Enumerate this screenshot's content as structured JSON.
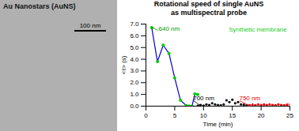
{
  "chart_data": [
    {
      "type": "image",
      "title": "Au Nanostars (AuNS)",
      "color": "#b0b0b0",
      "annotations": [
        {
          "text": "100 nm"
        }
      ]
    },
    {
      "type": "line",
      "title": "Rotational speed of single AuNS",
      "subtitle": "as multispectral probe",
      "xlabel": "Time (min)",
      "ylabel": "<τ> (s)",
      "xlim": [
        0,
        25
      ],
      "ylim": [
        0,
        7
      ],
      "xticks": [
        0,
        5,
        10,
        15,
        20,
        25
      ],
      "yticks": [
        0,
        1,
        2,
        3,
        4,
        5,
        6,
        7
      ],
      "grid": false,
      "series": [
        {
          "name": "640 nm",
          "type": "line",
          "marker": "o",
          "color": "#0000cc",
          "colors": [
            "#00cc00",
            "#00cc00",
            "#00cc00",
            "#00cc00",
            "#00cc00",
            "#00cc00",
            "#00cc00",
            "#00cc00",
            "#00cc00",
            "#00cc00",
            "#00cc00"
          ],
          "x": [
            1.0,
            2.0,
            3.0,
            4.0,
            5.0,
            6.0,
            7.0,
            7.5,
            8.0,
            8.5,
            9.0
          ],
          "values": [
            6.7,
            3.8,
            5.2,
            4.5,
            2.4,
            0.5,
            0.05,
            0.02,
            0.0,
            1.05,
            1.0
          ]
        },
        {
          "name": "700 nm",
          "type": "scatter",
          "marker": "o",
          "color": "#111111",
          "x": [
            9.0,
            9.5,
            10.0,
            10.5,
            11.0,
            11.5,
            12.0,
            12.5,
            13.0,
            13.5,
            14.0,
            14.5,
            15.0,
            15.5,
            16.0,
            16.5,
            17.0,
            17.5,
            18.0
          ],
          "values": [
            0.02,
            0.1,
            0.05,
            0.15,
            0.1,
            0.25,
            0.15,
            0.1,
            0.08,
            0.15,
            0.5,
            0.35,
            0.55,
            0.25,
            0.35,
            0.15,
            0.12,
            0.08,
            0.04
          ]
        },
        {
          "name": "750 nm",
          "type": "scatter",
          "marker": "o",
          "color": "#ee0000",
          "x": [
            18.0,
            18.5,
            19.0,
            19.5,
            20.0,
            20.5,
            21.0,
            21.5,
            22.0,
            22.5,
            23.0,
            23.5,
            24.0,
            24.5,
            25.0
          ],
          "values": [
            0.08,
            0.12,
            0.08,
            0.15,
            0.1,
            0.14,
            0.09,
            0.15,
            0.1,
            0.08,
            0.15,
            0.1,
            0.08,
            0.12,
            0.15
          ]
        }
      ],
      "annotations": [
        {
          "text": "640 nm",
          "x": 1.0,
          "y": 6.7,
          "text_x": 2.2,
          "text_y": 6.45,
          "color": "#009900"
        },
        {
          "text": "700 nm",
          "x": 9.5,
          "y": 0.02,
          "text_x": 8.2,
          "text_y": 0.5,
          "color": "#000000"
        },
        {
          "text": "750 nm",
          "x": 18.0,
          "y": 0.02,
          "text_x": 16.2,
          "text_y": 0.48,
          "color": "#ee0000"
        },
        {
          "text": "Synthetic membrane",
          "color": "#22cc22"
        }
      ]
    }
  ]
}
